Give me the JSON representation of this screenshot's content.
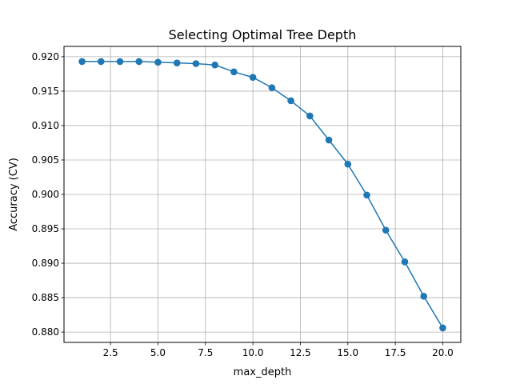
{
  "chart_data": {
    "type": "line",
    "title": "Selecting Optimal Tree Depth",
    "xlabel": "max_depth",
    "ylabel": "Accuracy (CV)",
    "xlim": [
      0.05,
      20.95
    ],
    "ylim": [
      0.8785,
      0.9215
    ],
    "xticks": [
      2.5,
      5.0,
      7.5,
      10.0,
      12.5,
      15.0,
      17.5,
      20.0
    ],
    "xtick_labels": [
      "2.5",
      "5.0",
      "7.5",
      "10.0",
      "12.5",
      "15.0",
      "17.5",
      "20.0"
    ],
    "yticks": [
      0.88,
      0.885,
      0.89,
      0.895,
      0.9,
      0.905,
      0.91,
      0.915,
      0.92
    ],
    "ytick_labels": [
      "0.880",
      "0.885",
      "0.890",
      "0.895",
      "0.900",
      "0.905",
      "0.910",
      "0.915",
      "0.920"
    ],
    "grid": true,
    "series": [
      {
        "color": "#1f77b4",
        "marker": "circle",
        "x": [
          1,
          2,
          3,
          4,
          5,
          6,
          7,
          8,
          9,
          10,
          11,
          12,
          13,
          14,
          15,
          16,
          17,
          18,
          19,
          20
        ],
        "y": [
          0.9193,
          0.9193,
          0.9193,
          0.9193,
          0.9192,
          0.9191,
          0.919,
          0.9188,
          0.9178,
          0.917,
          0.9155,
          0.9136,
          0.9114,
          0.9079,
          0.9044,
          0.8999,
          0.8948,
          0.8902,
          0.8852,
          0.8806
        ]
      }
    ]
  }
}
